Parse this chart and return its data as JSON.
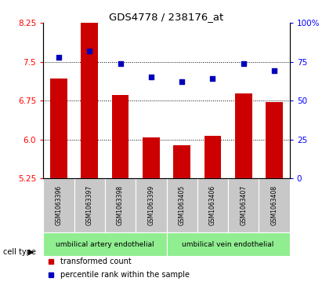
{
  "title": "GDS4778 / 238176_at",
  "samples": [
    "GSM1063396",
    "GSM1063397",
    "GSM1063398",
    "GSM1063399",
    "GSM1063405",
    "GSM1063406",
    "GSM1063407",
    "GSM1063408"
  ],
  "transformed_counts": [
    7.18,
    8.35,
    6.85,
    6.04,
    5.88,
    6.07,
    6.88,
    6.72
  ],
  "percentile_ranks": [
    78,
    82,
    74,
    65,
    62,
    64,
    74,
    69
  ],
  "ylim_left": [
    5.25,
    8.25
  ],
  "yticks_left": [
    5.25,
    6.0,
    6.75,
    7.5,
    8.25
  ],
  "ylim_right": [
    0,
    100
  ],
  "yticks_right": [
    0,
    25,
    50,
    75,
    100
  ],
  "bar_color": "#cc0000",
  "scatter_color": "#0000bb",
  "group1_label": "umbilical artery endothelial",
  "group2_label": "umbilical vein endothelial",
  "legend_red_label": "transformed count",
  "legend_blue_label": "percentile rank within the sample",
  "cell_type_label": "cell type",
  "bg_color": "#ffffff",
  "tick_label_area_color": "#c8c8c8",
  "green_color": "#90EE90",
  "bar_width": 0.55
}
